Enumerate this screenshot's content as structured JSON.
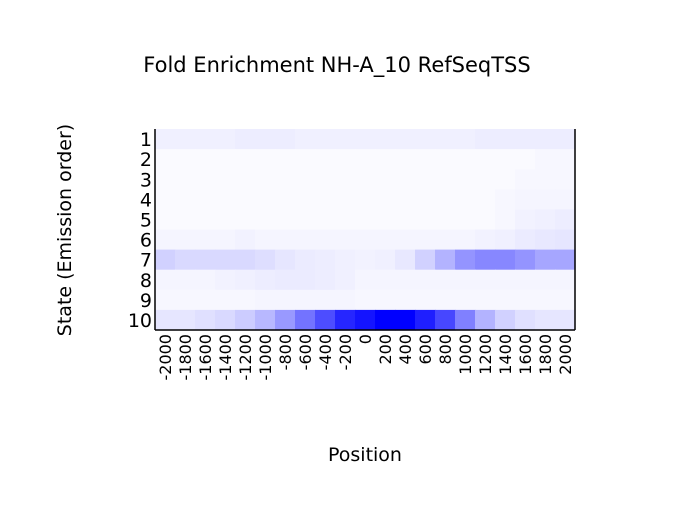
{
  "chart_data": {
    "type": "heatmap",
    "title": "Fold Enrichment NH-A_10 RefSeqTSS",
    "xlabel": "Position",
    "ylabel": "State (Emission order)",
    "x": [
      -2000,
      -1800,
      -1600,
      -1400,
      -1200,
      -1000,
      -800,
      -600,
      -400,
      -200,
      0,
      200,
      400,
      600,
      800,
      1000,
      1200,
      1400,
      1600,
      1800,
      2000
    ],
    "x_tick_labels": [
      "-2000",
      "-1800",
      "-1600",
      "-1400",
      "-1200",
      "-1000",
      "-800",
      "-600",
      "-400",
      "-200",
      "0",
      "200",
      "400",
      "600",
      "800",
      "1000",
      "1200",
      "1400",
      "1600",
      "1800",
      "2000"
    ],
    "y_tick_labels": [
      "1",
      "2",
      "3",
      "4",
      "5",
      "6",
      "7",
      "8",
      "9",
      "10"
    ],
    "color_low": "#ffffff",
    "color_high": "#0000ff",
    "values": [
      [
        0.06,
        0.06,
        0.06,
        0.06,
        0.07,
        0.07,
        0.07,
        0.06,
        0.06,
        0.06,
        0.06,
        0.06,
        0.06,
        0.06,
        0.06,
        0.06,
        0.07,
        0.07,
        0.07,
        0.07,
        0.07
      ],
      [
        0.02,
        0.02,
        0.02,
        0.02,
        0.02,
        0.02,
        0.02,
        0.02,
        0.02,
        0.02,
        0.02,
        0.02,
        0.02,
        0.02,
        0.02,
        0.02,
        0.02,
        0.02,
        0.02,
        0.03,
        0.03
      ],
      [
        0.02,
        0.02,
        0.02,
        0.02,
        0.02,
        0.02,
        0.02,
        0.02,
        0.02,
        0.02,
        0.02,
        0.02,
        0.02,
        0.02,
        0.02,
        0.02,
        0.02,
        0.02,
        0.03,
        0.03,
        0.03
      ],
      [
        0.02,
        0.02,
        0.02,
        0.02,
        0.02,
        0.02,
        0.02,
        0.02,
        0.02,
        0.02,
        0.02,
        0.02,
        0.02,
        0.02,
        0.02,
        0.02,
        0.02,
        0.03,
        0.04,
        0.04,
        0.04
      ],
      [
        0.02,
        0.02,
        0.02,
        0.02,
        0.02,
        0.02,
        0.02,
        0.02,
        0.02,
        0.02,
        0.02,
        0.02,
        0.02,
        0.02,
        0.02,
        0.02,
        0.02,
        0.03,
        0.05,
        0.06,
        0.07
      ],
      [
        0.04,
        0.04,
        0.04,
        0.04,
        0.05,
        0.04,
        0.04,
        0.04,
        0.04,
        0.04,
        0.04,
        0.04,
        0.04,
        0.04,
        0.04,
        0.04,
        0.05,
        0.06,
        0.08,
        0.09,
        0.1
      ],
      [
        0.18,
        0.15,
        0.15,
        0.15,
        0.15,
        0.13,
        0.1,
        0.08,
        0.07,
        0.06,
        0.05,
        0.06,
        0.09,
        0.18,
        0.3,
        0.42,
        0.47,
        0.47,
        0.42,
        0.35,
        0.35
      ],
      [
        0.04,
        0.04,
        0.04,
        0.05,
        0.06,
        0.07,
        0.08,
        0.08,
        0.07,
        0.06,
        0.04,
        0.04,
        0.04,
        0.04,
        0.04,
        0.04,
        0.04,
        0.04,
        0.04,
        0.04,
        0.04
      ],
      [
        0.03,
        0.03,
        0.03,
        0.03,
        0.03,
        0.04,
        0.04,
        0.04,
        0.04,
        0.04,
        0.03,
        0.03,
        0.03,
        0.03,
        0.03,
        0.03,
        0.03,
        0.03,
        0.03,
        0.03,
        0.03
      ],
      [
        0.1,
        0.1,
        0.12,
        0.15,
        0.2,
        0.28,
        0.4,
        0.55,
        0.7,
        0.85,
        0.92,
        1.0,
        1.0,
        0.88,
        0.72,
        0.5,
        0.3,
        0.18,
        0.12,
        0.1,
        0.1
      ]
    ]
  }
}
